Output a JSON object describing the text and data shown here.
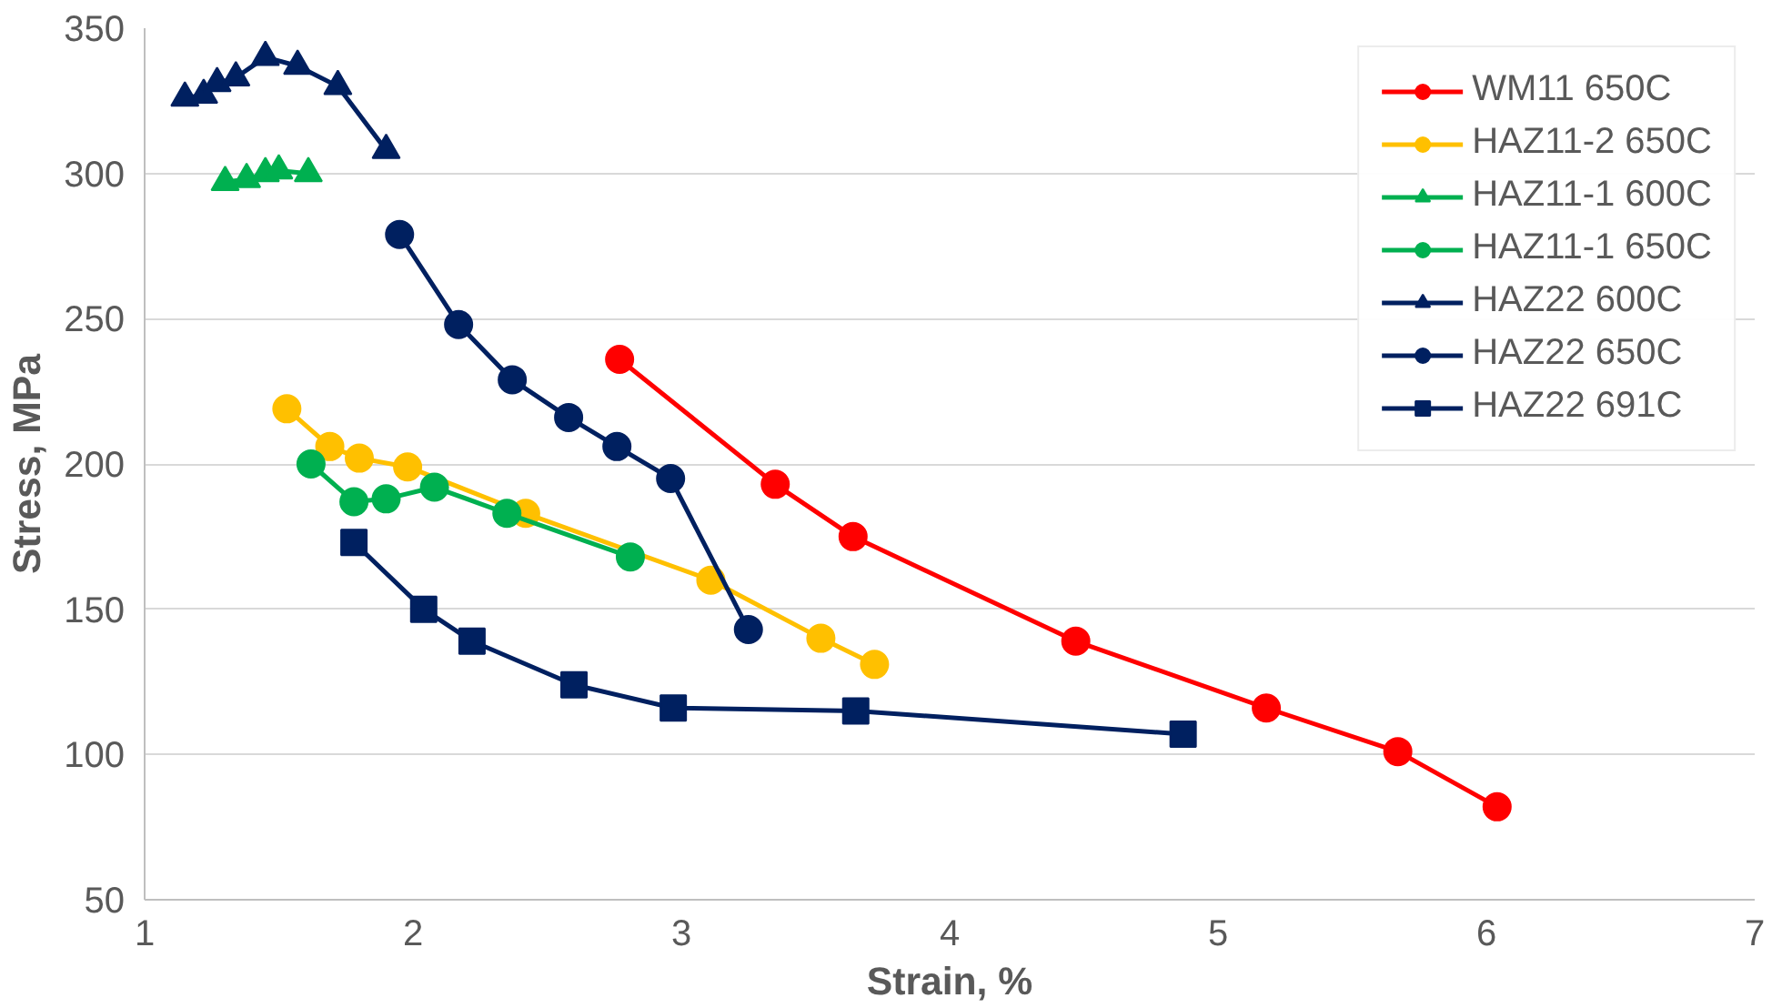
{
  "chart_data": {
    "type": "line",
    "xlabel": "Strain, %",
    "ylabel": "Stress, MPa",
    "xlim": [
      1,
      7
    ],
    "ylim": [
      50,
      350
    ],
    "xticks": [
      1,
      2,
      3,
      4,
      5,
      6,
      7
    ],
    "yticks": [
      50,
      100,
      150,
      200,
      250,
      300,
      350
    ],
    "grid": "y",
    "legend": "top right",
    "line_style": "solid",
    "series": [
      {
        "name": "WM11 650C",
        "color": "#ff0000",
        "marker": "circle",
        "x": [
          2.77,
          3.35,
          3.64,
          4.47,
          5.18,
          5.67,
          6.04
        ],
        "values": [
          236,
          193,
          175,
          139,
          116,
          101,
          82
        ]
      },
      {
        "name": "HAZ11-2 650C",
        "color": "#ffc000",
        "marker": "circle",
        "x": [
          1.53,
          1.69,
          1.8,
          1.98,
          2.42,
          3.11,
          3.52,
          3.72
        ],
        "values": [
          219,
          206,
          202,
          199,
          183,
          160,
          140,
          131
        ]
      },
      {
        "name": "HAZ11-1 600C",
        "color": "#00b050",
        "marker": "triangle",
        "x": [
          1.3,
          1.38,
          1.45,
          1.5,
          1.61
        ],
        "values": [
          297,
          298,
          300,
          301,
          300
        ]
      },
      {
        "name": "HAZ11-1 650C",
        "color": "#00b050",
        "marker": "circle",
        "x": [
          1.62,
          1.78,
          1.9,
          2.08,
          2.35,
          2.81
        ],
        "values": [
          200,
          187,
          188,
          192,
          183,
          168
        ]
      },
      {
        "name": "HAZ22 600C",
        "color": "#002060",
        "marker": "triangle",
        "x": [
          1.15,
          1.22,
          1.27,
          1.34,
          1.45,
          1.57,
          1.72,
          1.9
        ],
        "values": [
          326,
          327,
          331,
          333,
          340,
          337,
          330,
          308
        ]
      },
      {
        "name": "HAZ22 650C",
        "color": "#002060",
        "marker": "circle",
        "x": [
          1.95,
          2.17,
          2.37,
          2.58,
          2.76,
          2.96,
          3.25
        ],
        "values": [
          279,
          248,
          229,
          216,
          206,
          195,
          143
        ]
      },
      {
        "name": "HAZ22 691C",
        "color": "#002060",
        "marker": "square",
        "x": [
          1.78,
          2.04,
          2.22,
          2.6,
          2.97,
          3.65,
          4.87
        ],
        "values": [
          173,
          150,
          139,
          124,
          116,
          115,
          107
        ]
      }
    ]
  }
}
